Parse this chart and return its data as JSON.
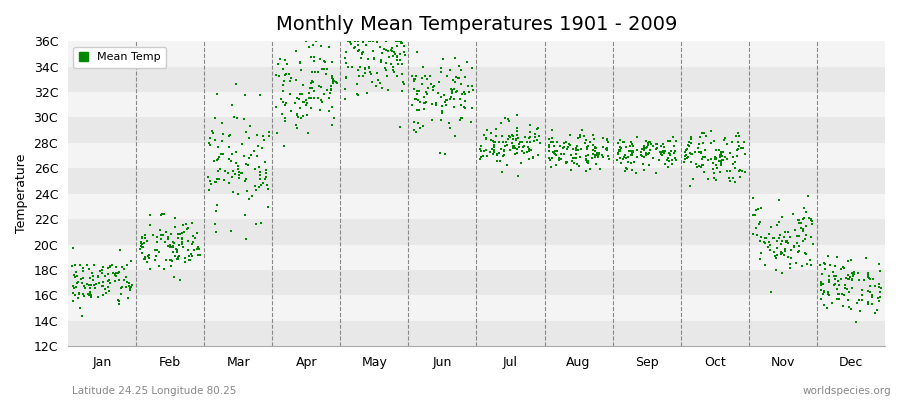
{
  "title": "Monthly Mean Temperatures 1901 - 2009",
  "ylabel": "Temperature",
  "subtitle": "Latitude 24.25 Longitude 80.25",
  "watermark": "worldspecies.org",
  "dot_color": "#008800",
  "background_color": "#e8e8e8",
  "band_colors_h": [
    "#e8e8e8",
    "#f4f4f4"
  ],
  "months": [
    "Jan",
    "Feb",
    "Mar",
    "Apr",
    "May",
    "Jun",
    "Jul",
    "Aug",
    "Sep",
    "Oct",
    "Nov",
    "Dec"
  ],
  "mean_temps": [
    17.0,
    19.8,
    26.5,
    32.5,
    34.5,
    31.5,
    28.0,
    27.2,
    27.2,
    27.0,
    20.5,
    16.8
  ],
  "temp_spread": [
    1.0,
    1.2,
    2.2,
    1.8,
    1.5,
    1.5,
    0.9,
    0.7,
    0.7,
    1.1,
    1.5,
    1.1
  ],
  "ylim": [
    12,
    36
  ],
  "ytick_step": 2,
  "n_years": 109,
  "title_fontsize": 14,
  "label_fontsize": 9,
  "tick_fontsize": 9,
  "legend_label": "Mean Temp",
  "dot_size": 4
}
